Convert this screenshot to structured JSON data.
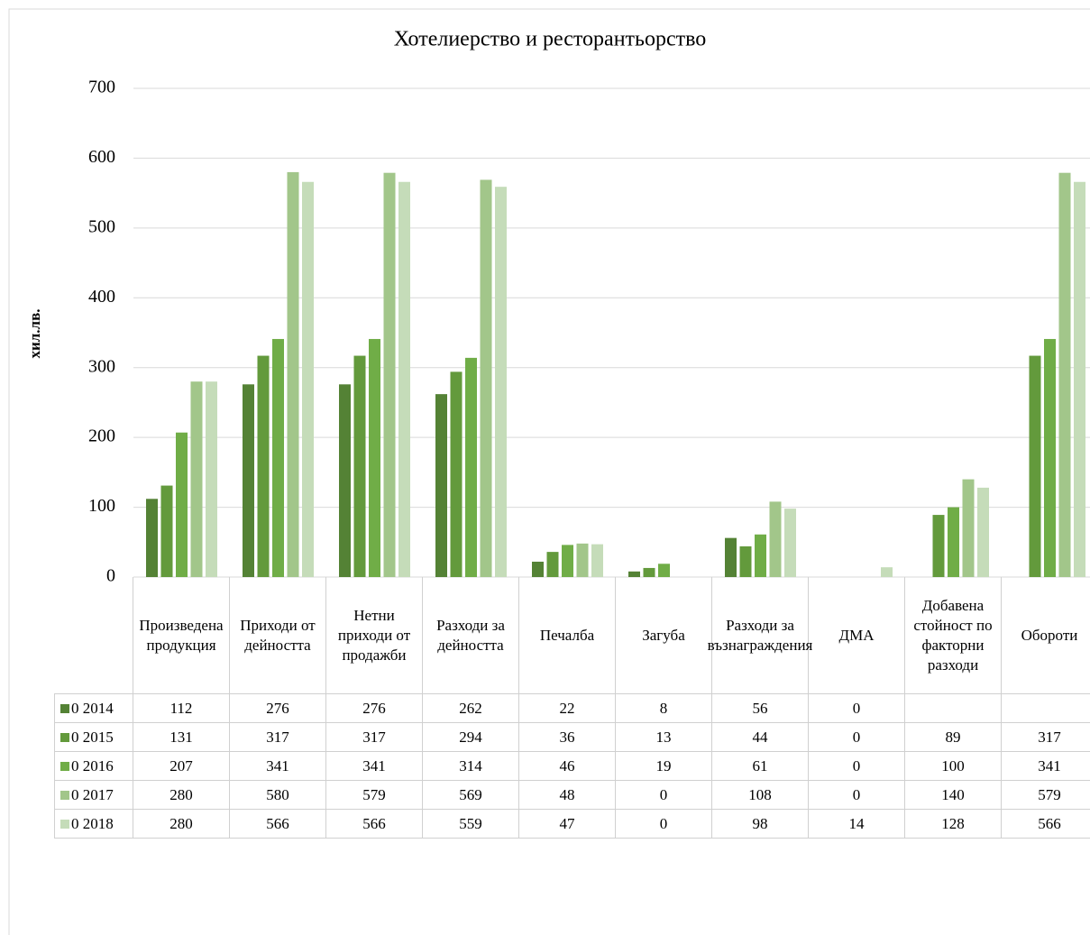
{
  "chart_data": {
    "type": "bar",
    "title": "Хотелиерство и ресторантьорство",
    "y_label": "хил.лв.",
    "categories": [
      "Произведена продукция",
      "Приходи от дейността",
      "Нетни приходи от продажби",
      "Разходи за дейността",
      "Печалба",
      "Загуба",
      "Разходи за възнаграждения",
      "ДМА",
      "Добавена стойност по факторни разходи",
      "Обороти"
    ],
    "series": [
      {
        "name": "0 2014",
        "color": "#548235",
        "values": [
          112,
          276,
          276,
          262,
          22,
          8,
          56,
          0,
          null,
          null
        ]
      },
      {
        "name": "0 2015",
        "color": "#639a3c",
        "values": [
          131,
          317,
          317,
          294,
          36,
          13,
          44,
          0,
          89,
          317
        ]
      },
      {
        "name": "0 2016",
        "color": "#70ad47",
        "values": [
          207,
          341,
          341,
          314,
          46,
          19,
          61,
          0,
          100,
          341
        ]
      },
      {
        "name": "0 2017",
        "color": "#a2c68a",
        "values": [
          280,
          580,
          579,
          569,
          48,
          0,
          108,
          0,
          140,
          579
        ]
      },
      {
        "name": "0 2018",
        "color": "#c5dcb9",
        "values": [
          280,
          566,
          566,
          559,
          47,
          0,
          98,
          14,
          128,
          566
        ]
      }
    ],
    "ylim": [
      0,
      700
    ],
    "yticks": [
      0,
      100,
      200,
      300,
      400,
      500,
      600,
      700
    ],
    "grid": true,
    "data_table": true
  }
}
